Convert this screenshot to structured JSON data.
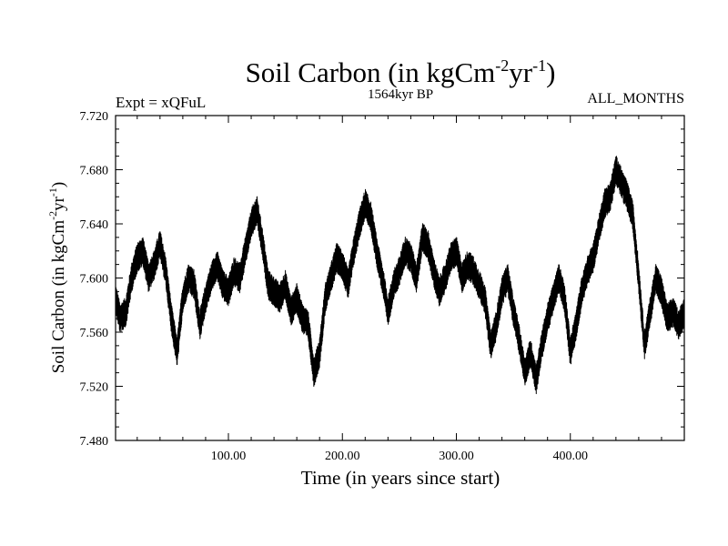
{
  "chart_data": {
    "type": "line",
    "title": "Soil Carbon (in kgCm",
    "title_sup1": "-2",
    "title_mid": "yr",
    "title_sup2": "-1",
    "title_end": ")",
    "subtitle_left": "Expt = xQFuL",
    "subtitle_center": "1564kyr BP",
    "subtitle_right": "ALL_MONTHS",
    "xlabel": "Time (in years since start)",
    "ylabel_main": "Soil Carbon (in kgCm",
    "ylabel_sup1": "-2",
    "ylabel_mid": "yr",
    "ylabel_sup2": "-1",
    "ylabel_end": ")",
    "xlim": [
      1,
      500
    ],
    "ylim": [
      7.48,
      7.72
    ],
    "x_ticks": [
      100,
      200,
      300,
      400
    ],
    "x_tick_labels": [
      "100.00",
      "200.00",
      "300.00",
      "400.00"
    ],
    "y_ticks": [
      7.48,
      7.52,
      7.56,
      7.6,
      7.64,
      7.68,
      7.72
    ],
    "y_tick_labels": [
      "7.480",
      "7.520",
      "7.560",
      "7.600",
      "7.640",
      "7.680",
      "7.720"
    ],
    "series": [
      {
        "name": "Soil Carbon",
        "color": "#000000",
        "noise_amplitude": 0.011,
        "x": [
          1,
          5,
          10,
          15,
          20,
          25,
          30,
          35,
          40,
          45,
          50,
          55,
          60,
          65,
          70,
          75,
          80,
          85,
          90,
          95,
          100,
          105,
          110,
          115,
          120,
          125,
          130,
          135,
          140,
          145,
          150,
          155,
          160,
          165,
          170,
          175,
          180,
          185,
          190,
          195,
          200,
          205,
          210,
          215,
          220,
          225,
          230,
          235,
          240,
          245,
          250,
          255,
          260,
          265,
          270,
          275,
          280,
          285,
          290,
          295,
          300,
          305,
          310,
          315,
          320,
          325,
          330,
          335,
          340,
          345,
          350,
          355,
          360,
          365,
          370,
          375,
          380,
          385,
          390,
          395,
          400,
          405,
          410,
          415,
          420,
          425,
          430,
          435,
          440,
          445,
          450,
          455,
          460,
          465,
          470,
          475,
          480,
          485,
          490,
          495,
          500
        ],
        "y": [
          7.585,
          7.57,
          7.575,
          7.6,
          7.615,
          7.62,
          7.6,
          7.61,
          7.625,
          7.605,
          7.57,
          7.545,
          7.585,
          7.6,
          7.595,
          7.565,
          7.585,
          7.6,
          7.61,
          7.595,
          7.59,
          7.605,
          7.6,
          7.62,
          7.64,
          7.65,
          7.625,
          7.595,
          7.59,
          7.585,
          7.595,
          7.575,
          7.585,
          7.57,
          7.565,
          7.53,
          7.545,
          7.585,
          7.6,
          7.615,
          7.61,
          7.595,
          7.62,
          7.64,
          7.655,
          7.645,
          7.62,
          7.6,
          7.575,
          7.595,
          7.605,
          7.62,
          7.615,
          7.6,
          7.63,
          7.625,
          7.605,
          7.59,
          7.6,
          7.615,
          7.62,
          7.6,
          7.61,
          7.605,
          7.595,
          7.585,
          7.55,
          7.565,
          7.59,
          7.6,
          7.575,
          7.555,
          7.53,
          7.545,
          7.525,
          7.55,
          7.57,
          7.585,
          7.6,
          7.585,
          7.545,
          7.565,
          7.59,
          7.605,
          7.615,
          7.635,
          7.655,
          7.66,
          7.68,
          7.67,
          7.66,
          7.645,
          7.6,
          7.55,
          7.575,
          7.6,
          7.59,
          7.57,
          7.575,
          7.565,
          7.575
        ]
      }
    ]
  }
}
